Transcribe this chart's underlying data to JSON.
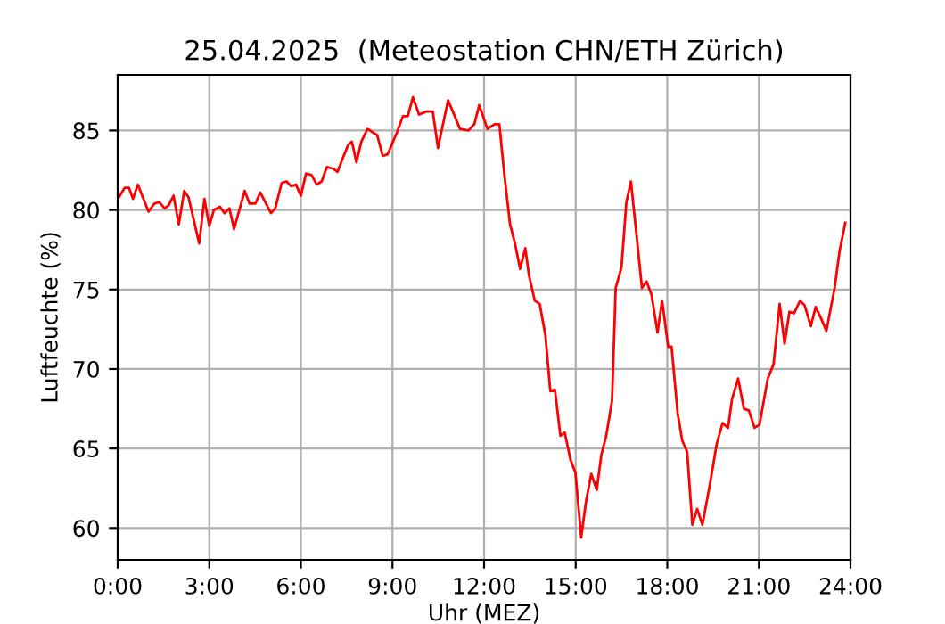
{
  "chart_data": {
    "type": "line",
    "title": "25.04.2025  (Meteostation CHN/ETH Zürich)",
    "xlabel": "Uhr (MEZ)",
    "ylabel": "Luftfeuchte (%)",
    "xlim": [
      0,
      24
    ],
    "ylim": [
      58.0,
      88.5
    ],
    "xticks": [
      {
        "value": 0,
        "label": "0:00"
      },
      {
        "value": 3,
        "label": "3:00"
      },
      {
        "value": 6,
        "label": "6:00"
      },
      {
        "value": 9,
        "label": "9:00"
      },
      {
        "value": 12,
        "label": "12:00"
      },
      {
        "value": 15,
        "label": "15:00"
      },
      {
        "value": 18,
        "label": "18:00"
      },
      {
        "value": 21,
        "label": "21:00"
      },
      {
        "value": 24,
        "label": "24:00"
      }
    ],
    "yticks": [
      60,
      65,
      70,
      75,
      80,
      85
    ],
    "grid": true,
    "x": [
      0.04,
      0.23,
      0.37,
      0.5,
      0.66,
      1.01,
      1.2,
      1.36,
      1.54,
      1.67,
      1.83,
      2.0,
      2.18,
      2.32,
      2.67,
      2.84,
      3.0,
      3.15,
      3.35,
      3.5,
      3.66,
      3.81,
      4.16,
      4.32,
      4.51,
      4.67,
      5.02,
      5.16,
      5.37,
      5.53,
      5.68,
      5.84,
      6.0,
      6.17,
      6.35,
      6.52,
      6.68,
      6.85,
      7.05,
      7.2,
      7.36,
      7.55,
      7.67,
      7.82,
      7.98,
      8.18,
      8.5,
      8.68,
      8.84,
      9.15,
      9.34,
      9.5,
      9.67,
      9.87,
      10.12,
      10.32,
      10.49,
      10.82,
      11.04,
      11.21,
      11.49,
      11.68,
      11.84,
      12.11,
      12.34,
      12.5,
      12.66,
      12.85,
      13.0,
      13.18,
      13.35,
      13.47,
      13.66,
      13.82,
      14.01,
      14.17,
      14.32,
      14.5,
      14.64,
      14.83,
      14.99,
      15.18,
      15.34,
      15.51,
      15.69,
      15.84,
      16.0,
      16.19,
      16.31,
      16.5,
      16.66,
      16.81,
      17.01,
      17.17,
      17.32,
      17.48,
      17.68,
      17.83,
      18.03,
      18.14,
      18.34,
      18.49,
      18.65,
      18.82,
      18.98,
      19.15,
      19.39,
      19.62,
      19.81,
      19.99,
      20.12,
      20.32,
      20.51,
      20.67,
      20.86,
      21.02,
      21.29,
      21.48,
      21.68,
      21.84,
      22.0,
      22.15,
      22.35,
      22.5,
      22.7,
      22.86,
      23.01,
      23.21,
      23.48,
      23.64,
      23.83
    ],
    "series": [
      {
        "color": "#ff0000",
        "values": [
          80.8,
          81.4,
          81.4,
          80.7,
          81.6,
          79.9,
          80.4,
          80.5,
          80.1,
          80.3,
          80.9,
          79.1,
          81.2,
          80.8,
          77.9,
          80.7,
          79.0,
          80.0,
          80.2,
          79.8,
          80.1,
          78.8,
          81.2,
          80.4,
          80.4,
          81.1,
          79.8,
          80.1,
          81.7,
          81.8,
          81.5,
          81.6,
          80.9,
          82.3,
          82.2,
          81.6,
          81.8,
          82.7,
          82.6,
          82.4,
          83.2,
          84.1,
          84.3,
          83.0,
          84.3,
          85.1,
          84.7,
          83.4,
          83.5,
          84.9,
          85.9,
          85.9,
          87.1,
          86.0,
          86.2,
          86.2,
          83.9,
          86.9,
          85.9,
          85.1,
          85.0,
          85.4,
          86.6,
          85.1,
          85.4,
          85.4,
          82.3,
          79.1,
          78.0,
          76.3,
          77.6,
          75.9,
          74.3,
          74.1,
          72.1,
          68.6,
          68.7,
          65.8,
          66.0,
          64.3,
          63.5,
          59.4,
          61.7,
          63.4,
          62.4,
          64.6,
          65.8,
          68.0,
          75.1,
          76.4,
          80.5,
          81.8,
          78.1,
          75.1,
          75.5,
          74.7,
          72.3,
          74.3,
          71.4,
          71.4,
          67.2,
          65.5,
          64.8,
          60.2,
          61.2,
          60.2,
          62.7,
          65.3,
          66.6,
          66.3,
          68.1,
          69.4,
          67.5,
          67.4,
          66.3,
          66.5,
          69.4,
          70.3,
          74.1,
          71.6,
          73.6,
          73.5,
          74.3,
          74.0,
          72.7,
          73.9,
          73.3,
          72.4,
          75.1,
          77.4,
          79.2
        ]
      }
    ]
  }
}
